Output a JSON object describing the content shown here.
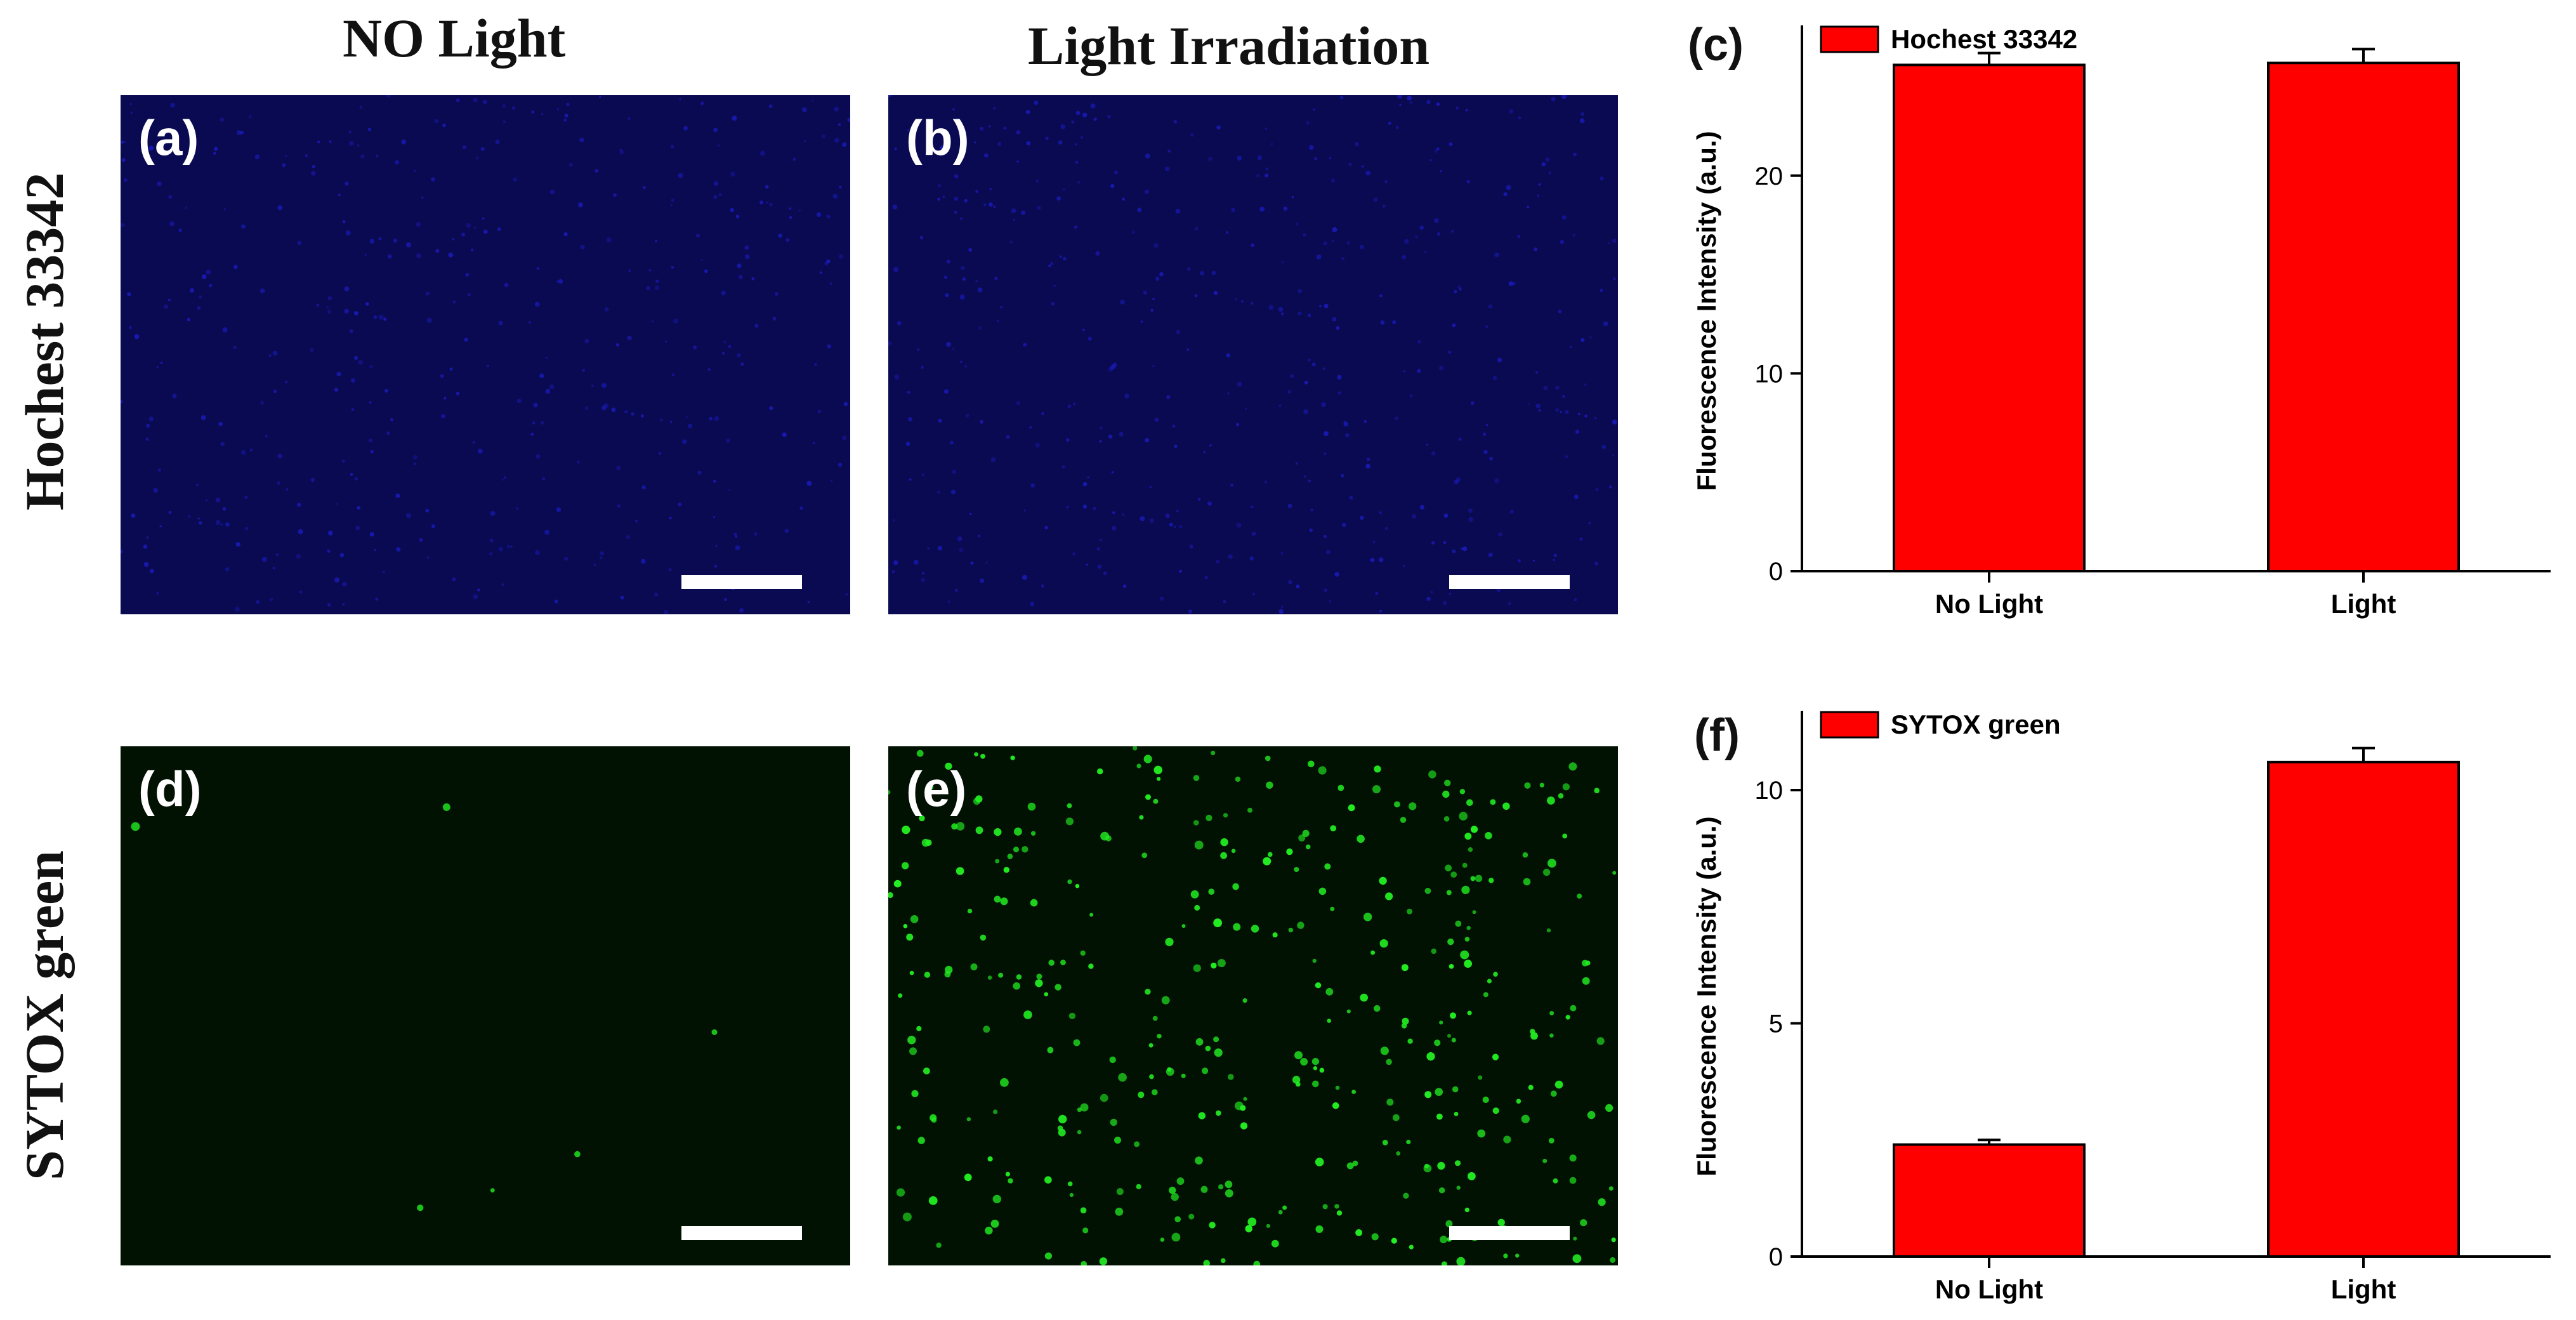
{
  "columns": {
    "no_light": "NO Light",
    "light": "Light Irradiation"
  },
  "rows": {
    "top": "Hochest 33342",
    "bottom": "SYTOX green"
  },
  "panels": {
    "a": "(a)",
    "b": "(b)",
    "c": "(c)",
    "d": "(d)",
    "e": "(e)",
    "f": "(f)"
  },
  "colors": {
    "hoechst_bg": "#0a0a52",
    "hoechst_dot": "#1c1cc8",
    "sytox_bg": "#021202",
    "sytox_dot": "#22ee22",
    "bar": "#ff0000"
  },
  "chart_data": [
    {
      "type": "bar",
      "panel": "(c)",
      "categories": [
        "No Light",
        "Light"
      ],
      "series": [
        {
          "name": "Hochest 33342",
          "values": [
            25.6,
            25.7
          ],
          "errors": [
            0.6,
            0.7
          ]
        }
      ],
      "ylabel": "Fluorescence Intensity (a.u.)",
      "ylim": [
        0,
        27.6
      ],
      "yticks": [
        0,
        10,
        20
      ],
      "legend": "top-left",
      "grid": false
    },
    {
      "type": "bar",
      "panel": "(f)",
      "categories": [
        "No Light",
        "Light"
      ],
      "series": [
        {
          "name": "SYTOX green",
          "values": [
            2.4,
            10.6
          ],
          "errors": [
            0.1,
            0.3
          ]
        }
      ],
      "ylabel": "Fluorescence Intensity (a.u.)",
      "ylim": [
        0,
        11.7
      ],
      "yticks": [
        0,
        5,
        10
      ],
      "legend": "top-left",
      "grid": false
    }
  ]
}
